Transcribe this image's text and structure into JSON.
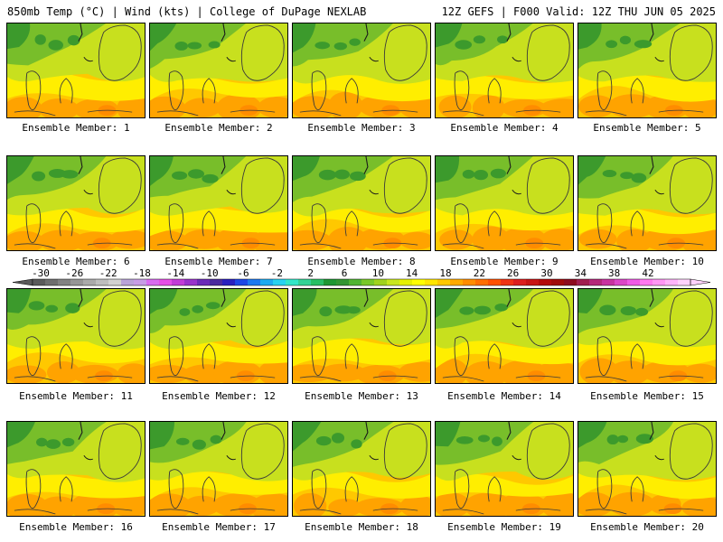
{
  "header": {
    "left": "850mb Temp (°C) | Wind (kts) | College of DuPage NEXLAB",
    "right": "12Z GEFS | F000 Valid: 12Z THU JUN 05 2025"
  },
  "member_label_prefix": "Ensemble Member:",
  "members": [
    1,
    2,
    3,
    4,
    5,
    6,
    7,
    8,
    9,
    10,
    11,
    12,
    13,
    14,
    15,
    16,
    17,
    18,
    19,
    20
  ],
  "colorbar": {
    "ticks": [
      "-30",
      "-26",
      "-22",
      "-18",
      "-14",
      "-10",
      "-6",
      "-2",
      "2",
      "6",
      "10",
      "14",
      "18",
      "22",
      "26",
      "30",
      "34",
      "38",
      "42"
    ],
    "colors": [
      "#5a5a5a",
      "#6e6e6e",
      "#828282",
      "#969696",
      "#aaaaaa",
      "#bebebe",
      "#d2d2d2",
      "#b9a3d9",
      "#c79de6",
      "#d86bf0",
      "#e64ee6",
      "#c23cd8",
      "#9932cc",
      "#6b2ab8",
      "#4b2a9e",
      "#2a1fbf",
      "#1e46e6",
      "#1e78f0",
      "#1eaaf0",
      "#28d2f0",
      "#32e6c8",
      "#32d296",
      "#28be64",
      "#1e9632",
      "#329632",
      "#50b432",
      "#78c828",
      "#a0d21e",
      "#c8e61e",
      "#e6f000",
      "#ffff00",
      "#ffe600",
      "#ffc800",
      "#ffaa00",
      "#ff8c00",
      "#ff6e00",
      "#ff5000",
      "#f03214",
      "#dc1e1e",
      "#c81414",
      "#b40a0a",
      "#a00a0a",
      "#8c0a1e",
      "#a01e50",
      "#b4287a",
      "#c832a0",
      "#dc46c8",
      "#f05ae6",
      "#ff78f0",
      "#ff96f5",
      "#ffb4fa",
      "#ffd2fc"
    ]
  },
  "field_colors": {
    "dark_green": "#3c9a2c",
    "mid_green": "#78be2a",
    "light_green": "#c8e01e",
    "yellow": "#ffee00",
    "amber": "#ffc800",
    "orange": "#ffa300",
    "dark_orange": "#ff8c00"
  }
}
